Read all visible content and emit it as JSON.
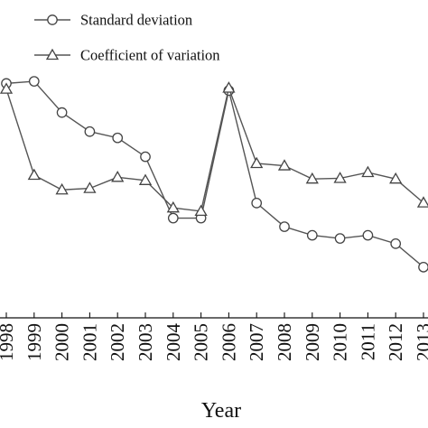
{
  "chart_data": {
    "type": "line",
    "xlabel": "Year",
    "ylabel": "",
    "x": [
      "1998",
      "1999",
      "2000",
      "2001",
      "2002",
      "2003",
      "2004",
      "2005",
      "2006",
      "2007",
      "2008",
      "2009",
      "2010",
      "2011",
      "2012",
      "2013"
    ],
    "ylim": [
      0,
      100
    ],
    "grid": false,
    "legend_position": "top-left",
    "series": [
      {
        "name": "Standard deviation",
        "marker": "circle",
        "color": "#555555",
        "values": [
          88.2,
          89.2,
          74.3,
          65.2,
          62.2,
          53.2,
          23.9,
          23.9,
          84.8,
          31.1,
          19.8,
          15.7,
          14.2,
          15.7,
          11.7,
          0.5
        ]
      },
      {
        "name": "Coefficient of variation",
        "marker": "triangle",
        "color": "#555555",
        "values": [
          85.5,
          44.4,
          37.4,
          38.1,
          43.4,
          41.9,
          28.8,
          27.2,
          86.0,
          50.0,
          48.9,
          42.6,
          42.9,
          45.7,
          42.6,
          31.2
        ]
      }
    ]
  }
}
